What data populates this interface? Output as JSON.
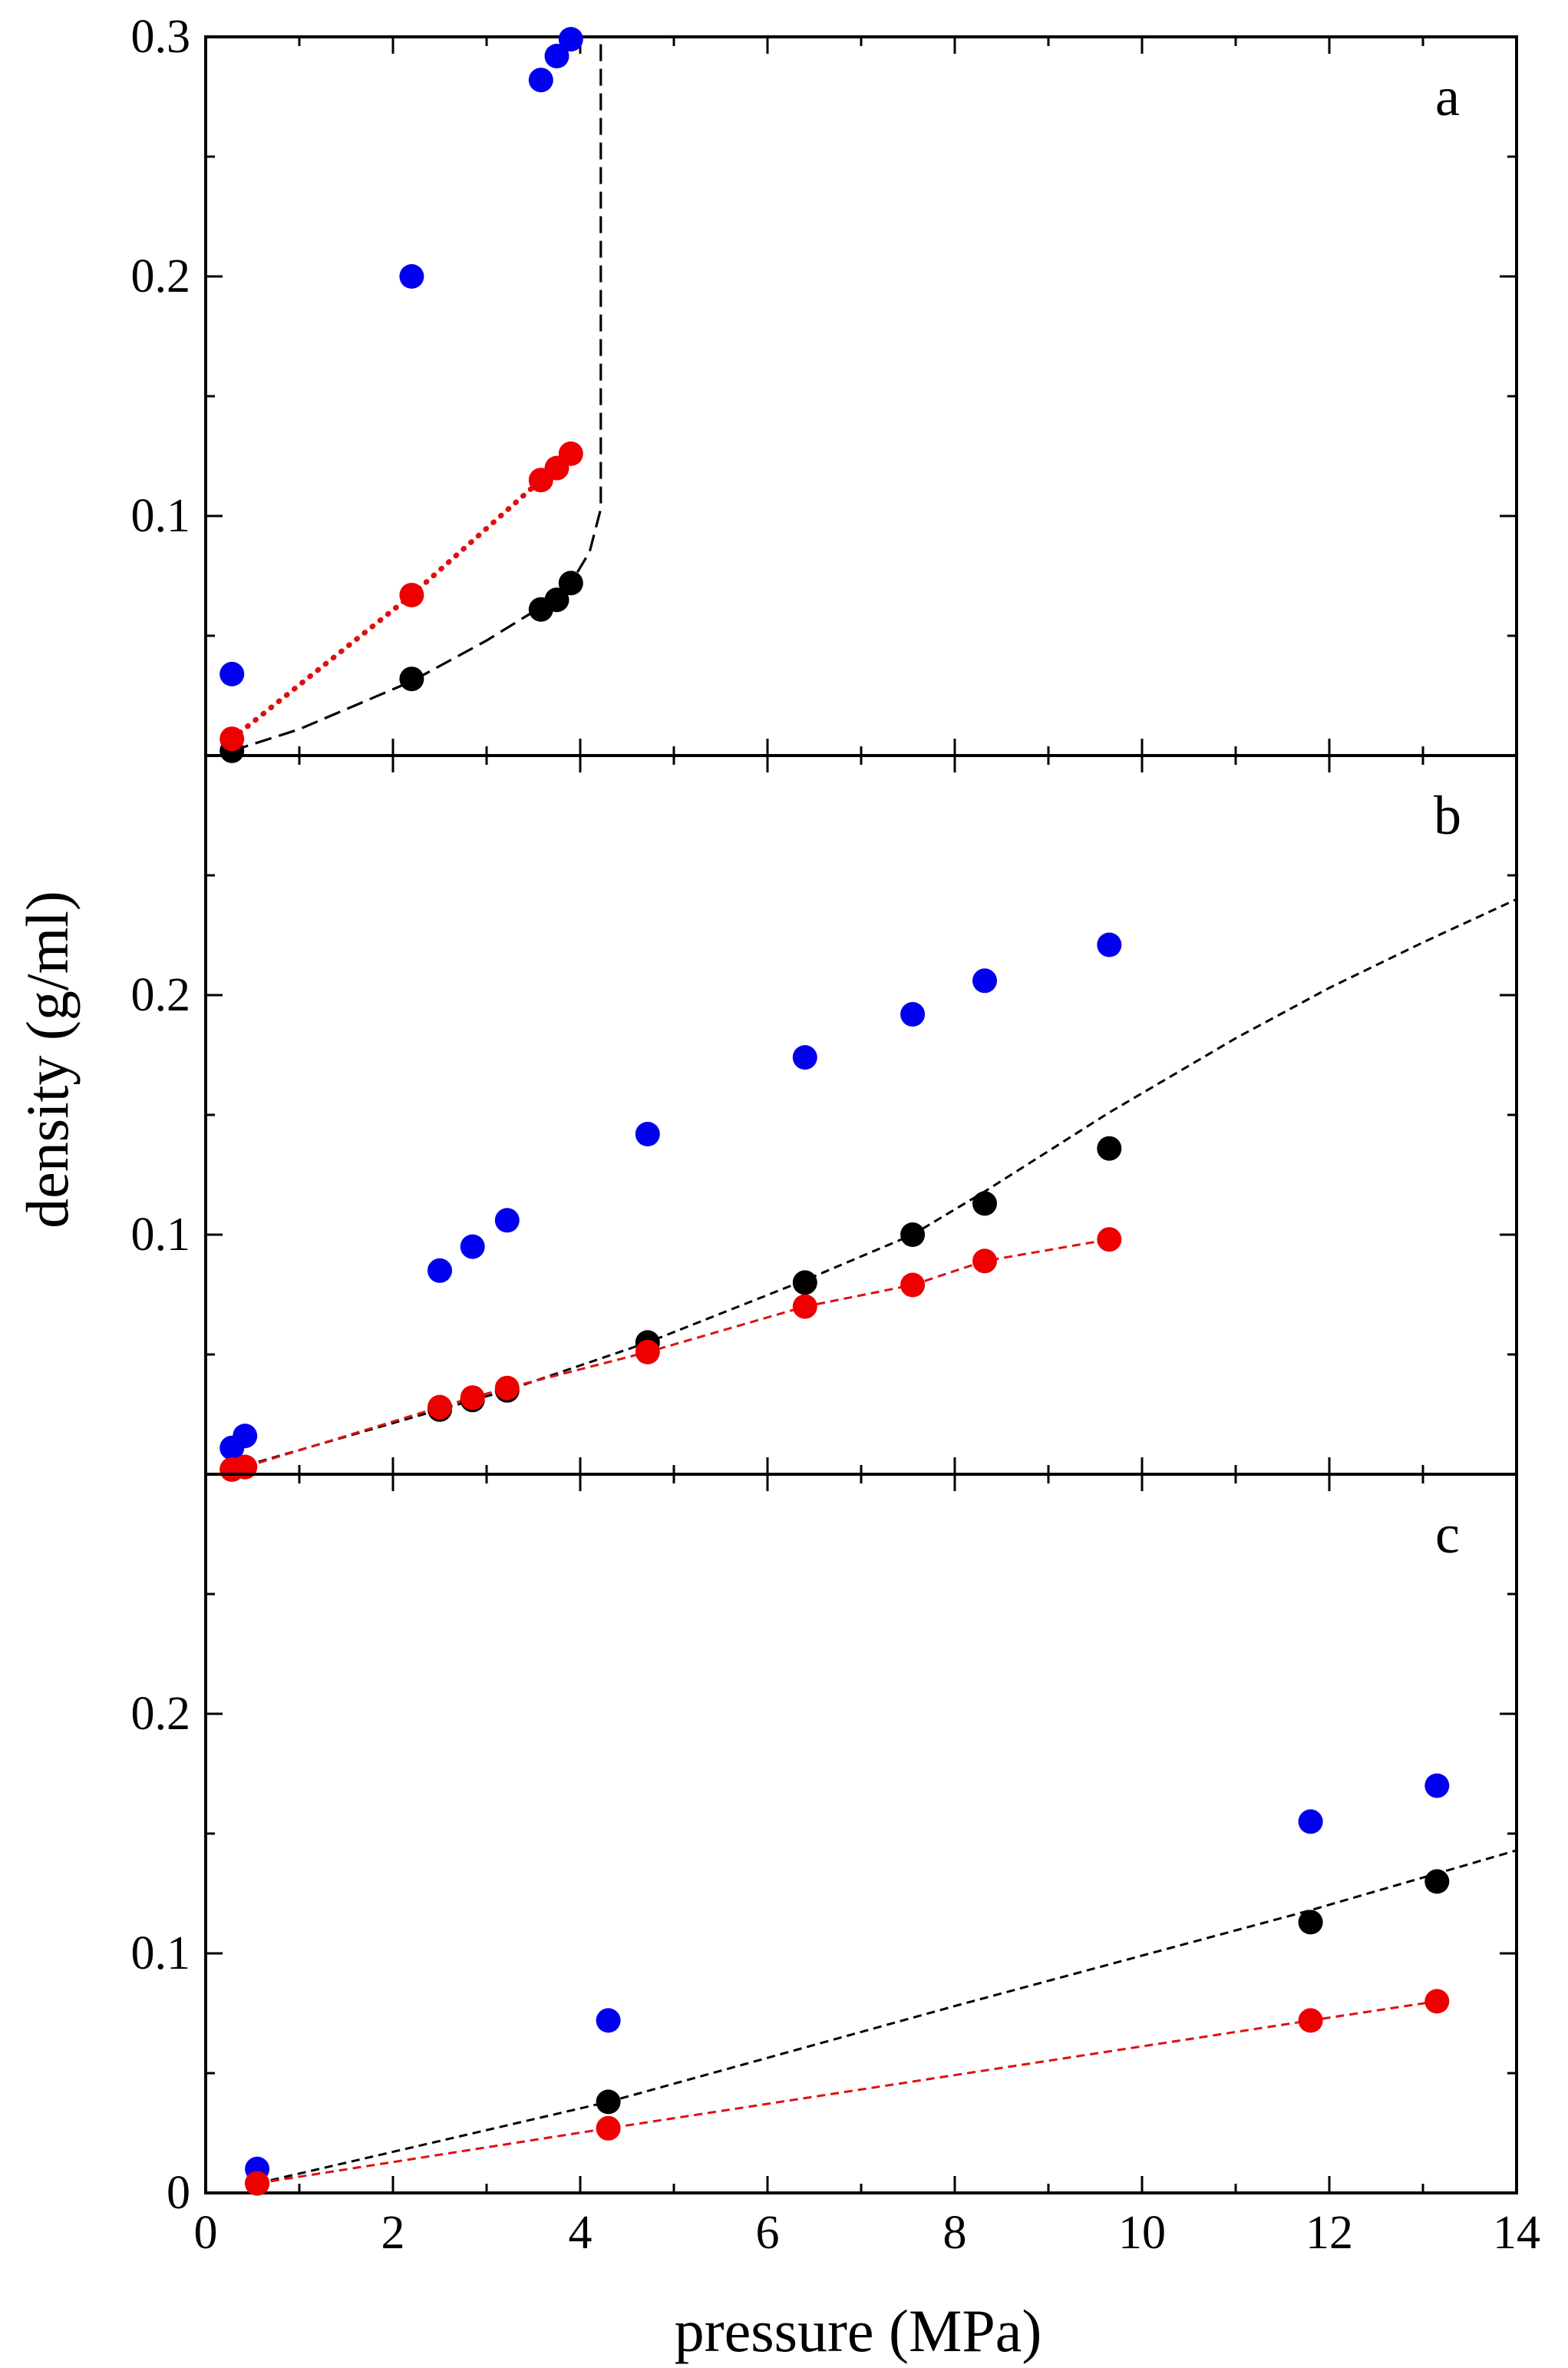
{
  "chart_data": {
    "type": "scatter",
    "xlabel": "pressure (MPa)",
    "ylabel": "density (g/ml)",
    "xlim": [
      0,
      14
    ],
    "ylim": [
      0,
      0.3
    ],
    "x_ticks": [
      0,
      2,
      4,
      6,
      8,
      10,
      12,
      14
    ],
    "x_tick_labels": [
      "0",
      "2",
      "4",
      "6",
      "8",
      "10",
      "12",
      "14"
    ],
    "legend": "none",
    "grid": false,
    "colors": {
      "blue": "#0000ee",
      "black": "#000000",
      "red": "#ee0000",
      "black_line": "#000000",
      "red_line": "#dd1111"
    },
    "panels": [
      {
        "label": "a",
        "y_ticks": [
          0.1,
          0.2,
          0.3
        ],
        "y_tick_labels": [
          "0.1",
          "0.2",
          "0.3"
        ],
        "series": [
          {
            "color": "blue",
            "points": [
              [
                0.28,
                0.034
              ],
              [
                2.2,
                0.2
              ],
              [
                3.58,
                0.282
              ],
              [
                3.75,
                0.292
              ],
              [
                3.9,
                0.299
              ]
            ]
          },
          {
            "color": "black",
            "points": [
              [
                0.28,
                0.002
              ],
              [
                2.2,
                0.032
              ],
              [
                3.58,
                0.061
              ],
              [
                3.75,
                0.065
              ],
              [
                3.9,
                0.072
              ]
            ]
          },
          {
            "color": "red",
            "points": [
              [
                0.28,
                0.007
              ],
              [
                2.2,
                0.067
              ],
              [
                3.58,
                0.115
              ],
              [
                3.75,
                0.12
              ],
              [
                3.9,
                0.126
              ]
            ]
          }
        ],
        "lines": [
          {
            "color": "black_line",
            "style": "long-dash",
            "points": [
              [
                0.28,
                0.002
              ],
              [
                1.0,
                0.011
              ],
              [
                2.2,
                0.031
              ],
              [
                3.0,
                0.048
              ],
              [
                3.58,
                0.062
              ],
              [
                3.9,
                0.072
              ],
              [
                4.1,
                0.085
              ],
              [
                4.22,
                0.103
              ],
              [
                4.22,
                0.3
              ]
            ]
          },
          {
            "color": "red_line",
            "style": "dotted",
            "points": [
              [
                0.28,
                0.007
              ],
              [
                2.2,
                0.067
              ],
              [
                3.58,
                0.115
              ],
              [
                3.75,
                0.12
              ],
              [
                3.9,
                0.126
              ]
            ]
          }
        ]
      },
      {
        "label": "b",
        "y_ticks": [
          0.1,
          0.2
        ],
        "y_tick_labels": [
          "0.1",
          "0.2"
        ],
        "series": [
          {
            "color": "blue",
            "points": [
              [
                0.28,
                0.011
              ],
              [
                0.42,
                0.016
              ],
              [
                2.5,
                0.085
              ],
              [
                2.85,
                0.095
              ],
              [
                3.22,
                0.106
              ],
              [
                4.72,
                0.142
              ],
              [
                6.4,
                0.174
              ],
              [
                7.55,
                0.192
              ],
              [
                8.32,
                0.206
              ],
              [
                9.65,
                0.221
              ]
            ]
          },
          {
            "color": "black",
            "points": [
              [
                0.28,
                0.002
              ],
              [
                0.42,
                0.003
              ],
              [
                2.5,
                0.027
              ],
              [
                2.85,
                0.031
              ],
              [
                3.22,
                0.035
              ],
              [
                4.72,
                0.055
              ],
              [
                6.4,
                0.08
              ],
              [
                7.55,
                0.1
              ],
              [
                8.32,
                0.113
              ],
              [
                9.65,
                0.136
              ]
            ]
          },
          {
            "color": "red",
            "points": [
              [
                0.28,
                0.002
              ],
              [
                0.42,
                0.003
              ],
              [
                2.5,
                0.028
              ],
              [
                2.85,
                0.032
              ],
              [
                3.22,
                0.036
              ],
              [
                4.72,
                0.051
              ],
              [
                6.4,
                0.07
              ],
              [
                7.55,
                0.079
              ],
              [
                8.32,
                0.089
              ],
              [
                9.65,
                0.098
              ]
            ]
          }
        ],
        "lines": [
          {
            "color": "black_line",
            "style": "dashed",
            "points": [
              [
                0.28,
                0.002
              ],
              [
                2.5,
                0.027
              ],
              [
                3.22,
                0.035
              ],
              [
                4.72,
                0.055
              ],
              [
                6.4,
                0.081
              ],
              [
                7.55,
                0.1
              ],
              [
                8.32,
                0.118
              ],
              [
                9.65,
                0.151
              ],
              [
                11.0,
                0.182
              ],
              [
                12.0,
                0.203
              ],
              [
                13.0,
                0.222
              ],
              [
                14.0,
                0.24
              ]
            ]
          },
          {
            "color": "red_line",
            "style": "dashed",
            "points": [
              [
                0.28,
                0.002
              ],
              [
                0.42,
                0.003
              ],
              [
                2.5,
                0.028
              ],
              [
                2.85,
                0.032
              ],
              [
                3.22,
                0.036
              ],
              [
                4.72,
                0.051
              ],
              [
                6.4,
                0.07
              ],
              [
                7.55,
                0.079
              ],
              [
                8.32,
                0.089
              ],
              [
                9.65,
                0.098
              ]
            ]
          }
        ]
      },
      {
        "label": "c",
        "y_ticks": [
          0,
          0.1,
          0.2
        ],
        "y_tick_labels": [
          "0",
          "0.1",
          "0.2"
        ],
        "series": [
          {
            "color": "blue",
            "points": [
              [
                0.55,
                0.01
              ],
              [
                4.3,
                0.072
              ],
              [
                11.8,
                0.155
              ],
              [
                13.15,
                0.17
              ]
            ]
          },
          {
            "color": "black",
            "points": [
              [
                0.55,
                0.004
              ],
              [
                4.3,
                0.038
              ],
              [
                11.8,
                0.113
              ],
              [
                13.15,
                0.13
              ]
            ]
          },
          {
            "color": "red",
            "points": [
              [
                0.55,
                0.004
              ],
              [
                4.3,
                0.027
              ],
              [
                11.8,
                0.072
              ],
              [
                13.15,
                0.08
              ]
            ]
          }
        ],
        "lines": [
          {
            "color": "black_line",
            "style": "dashed",
            "points": [
              [
                0.55,
                0.004
              ],
              [
                4.3,
                0.038
              ],
              [
                8.0,
                0.078
              ],
              [
                11.8,
                0.118
              ],
              [
                14.0,
                0.143
              ]
            ]
          },
          {
            "color": "red_line",
            "style": "dashed",
            "points": [
              [
                0.55,
                0.004
              ],
              [
                4.3,
                0.027
              ],
              [
                11.8,
                0.072
              ],
              [
                13.15,
                0.08
              ]
            ]
          }
        ]
      }
    ]
  }
}
